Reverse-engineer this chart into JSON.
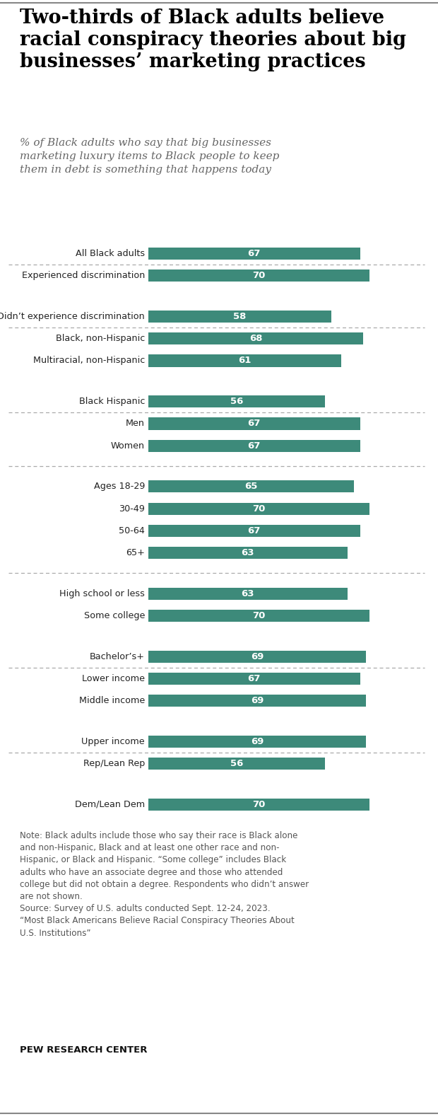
{
  "title": "Two-thirds of Black adults believe\nracial conspiracy theories about big\nbusinesses’ marketing practices",
  "subtitle_full": "% of Black adults who say that big businesses\nmarketing luxury items to Black people to keep\nthem in debt is something that happens today",
  "bar_color": "#3d8a7a",
  "categories": [
    "All Black adults",
    "Experienced discrimination",
    "Didn’t experience discrimination",
    "Black, non-Hispanic",
    "Multiracial, non-Hispanic",
    "Black Hispanic",
    "Men",
    "Women",
    "Ages 18-29",
    "30-49",
    "50-64",
    "65+",
    "High school or less",
    "Some college",
    "Bachelor’s+",
    "Lower income",
    "Middle income",
    "Upper income",
    "Rep/Lean Rep",
    "Dem/Lean Dem"
  ],
  "values": [
    67,
    70,
    58,
    68,
    61,
    56,
    67,
    67,
    65,
    70,
    67,
    63,
    63,
    70,
    69,
    67,
    69,
    69,
    56,
    70
  ],
  "separator_after_indices": [
    0,
    2,
    5,
    7,
    11,
    14,
    17
  ],
  "note": "Note: Black adults include those who say their race is Black alone\nand non-Hispanic, Black and at least one other race and non-\nHispanic, or Black and Hispanic. “Some college” includes Black\nadults who have an associate degree and those who attended\ncollege but did not obtain a degree. Respondents who didn’t answer\nare not shown.\nSource: Survey of U.S. adults conducted Sept. 12-24, 2023.\n“Most Black Americans Believe Racial Conspiracy Theories About\nU.S. Institutions”",
  "source_bold": "PEW RESEARCH CENTER",
  "xlim": [
    0,
    85
  ],
  "bar_height": 0.55,
  "background_color": "#ffffff",
  "title_color": "#000000",
  "subtitle_color": "#666666",
  "note_color": "#555555",
  "top_line_color": "#888888",
  "bottom_line_color": "#888888"
}
